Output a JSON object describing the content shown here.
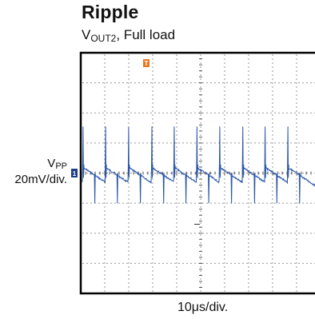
{
  "chart_data": {
    "type": "line",
    "title": "Ripple",
    "subtitle": {
      "prefix": "V",
      "sub": "OUT2",
      "suffix": ", Full load"
    },
    "ylabel": {
      "main": "V",
      "sub": "PP",
      "scale": "20mV/div."
    },
    "xlabel": "10μs/div.",
    "grid": true,
    "divisions": {
      "x": 10,
      "y": 8
    },
    "trigger_marker": "T",
    "channel_marker": "1",
    "series": [
      {
        "color": "#2a56a8",
        "x_spike_divisions": [
          0.08,
          1.02,
          1.98,
          2.95,
          3.88,
          4.83,
          5.78,
          6.74,
          7.67,
          8.62
        ],
        "spike_up_mV": 32,
        "spike_down_mV": -19,
        "ripple_pp_mV": 10
      }
    ],
    "colors": {
      "trace": "#2a56a8",
      "trigger": "#e87722",
      "channel_marker": "#1f3f8a"
    }
  }
}
